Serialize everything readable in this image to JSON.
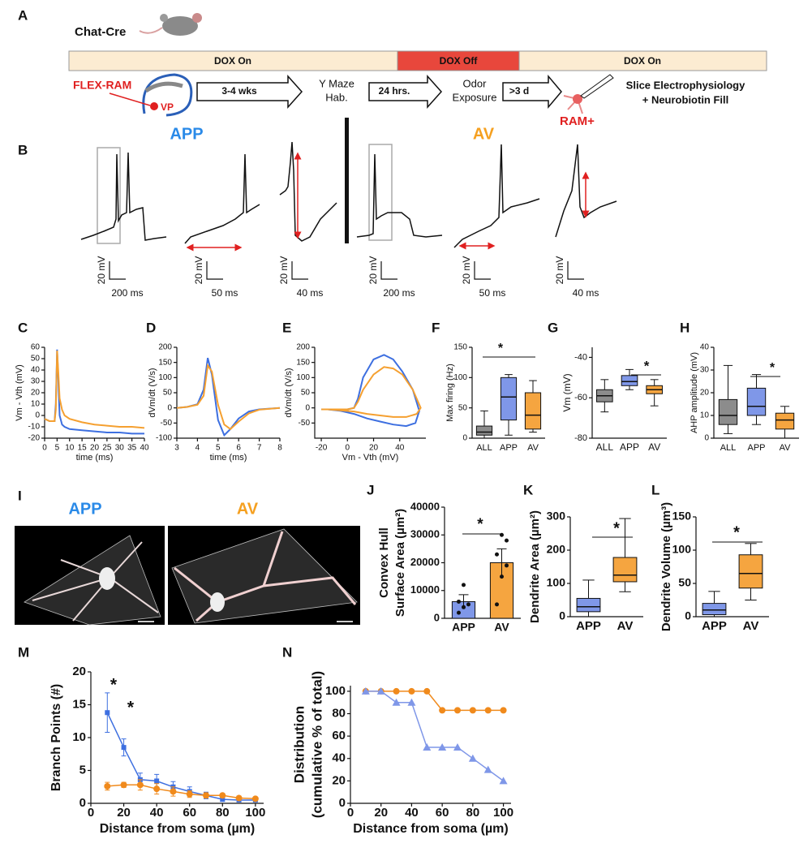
{
  "panel_labels": {
    "a": "A",
    "b": "B",
    "i": "I"
  },
  "schematic": {
    "mouse_line": "Chat-Cre",
    "dox_on_1": "DOX On",
    "dox_off": "DOX Off",
    "dox_on_2": "DOX On",
    "virus": "FLEX-RAM",
    "region": "VP",
    "step_1": "3-4 wks",
    "stage_1": [
      "Y Maze",
      "Hab."
    ],
    "step_2": "24 hrs.",
    "stage_2": [
      "Odor",
      "Exposure"
    ],
    "step_3": ">3 d",
    "stage_3": [
      "Slice Electrophysiology",
      "+ Neurobiotin Fill"
    ],
    "cell": "RAM+"
  },
  "traces": {
    "groups": [
      "APP",
      "AV"
    ],
    "scale_bars": [
      [
        "20 mV",
        "200 ms"
      ],
      [
        "20 mV",
        "50 ms"
      ],
      [
        "20 mV",
        "40 ms"
      ],
      [
        "20 mV",
        "200 ms"
      ],
      [
        "20 mV",
        "50 ms"
      ],
      [
        "20 mV",
        "40 ms"
      ]
    ]
  },
  "morphology": {
    "groups": [
      "APP",
      "AV"
    ]
  },
  "chart_data": [
    {
      "panel": "C",
      "type": "line",
      "xlabel": "time (ms)",
      "ylabel": "Vm - Vth (mV)",
      "x": [
        0,
        2,
        4,
        4.5,
        5,
        5.5,
        6,
        7,
        8,
        10,
        15,
        20,
        25,
        30,
        35,
        40
      ],
      "xlim": [
        0,
        40
      ],
      "xticks": [
        0,
        5,
        10,
        15,
        20,
        25,
        30,
        35,
        40
      ],
      "ylim": [
        -20,
        60
      ],
      "yticks": [
        -20,
        -10,
        0,
        10,
        20,
        30,
        40,
        50,
        60
      ],
      "series": [
        {
          "color": "#3d6fe0",
          "values": [
            -3,
            -5,
            -5,
            10,
            58,
            30,
            0,
            -8,
            -10,
            -12,
            -13,
            -14,
            -15,
            -15,
            -16,
            -16
          ]
        },
        {
          "color": "#f5a030",
          "values": [
            -3,
            -5,
            -5,
            5,
            57,
            38,
            15,
            5,
            0,
            -3,
            -6,
            -8,
            -9,
            -10,
            -10,
            -11
          ]
        }
      ]
    },
    {
      "panel": "D",
      "type": "line",
      "xlabel": "time (ms)",
      "ylabel": "dVm/dt (V/s)",
      "x": [
        3,
        3.5,
        4,
        4.3,
        4.5,
        4.7,
        5,
        5.3,
        5.6,
        6,
        6.5,
        7,
        8
      ],
      "xlim": [
        3,
        8
      ],
      "xticks": [
        3,
        4,
        5,
        6,
        7,
        8
      ],
      "ylim": [
        -100,
        200
      ],
      "yticks": [
        -100,
        -50,
        0,
        50,
        100,
        150,
        200
      ],
      "series": [
        {
          "color": "#3d6fe0",
          "values": [
            0,
            3,
            12,
            60,
            165,
            110,
            -40,
            -90,
            -70,
            -35,
            -12,
            -5,
            0
          ]
        },
        {
          "color": "#f5a030",
          "values": [
            0,
            3,
            10,
            40,
            140,
            120,
            10,
            -55,
            -70,
            -45,
            -18,
            -6,
            0
          ]
        }
      ]
    },
    {
      "panel": "E",
      "type": "line",
      "xlabel": "Vm - Vth (mV)",
      "ylabel": "dVm/dt (V/s)",
      "xlim": [
        -25,
        60
      ],
      "xticks": [
        -20,
        0,
        20,
        40
      ],
      "ylim": [
        -100,
        200
      ],
      "yticks": [
        -50,
        0,
        50,
        100,
        150,
        200
      ],
      "series": [
        {
          "color": "#3d6fe0",
          "x": [
            -20,
            -10,
            0,
            5,
            8,
            12,
            20,
            28,
            35,
            42,
            50,
            55,
            52,
            45,
            35,
            25,
            15,
            5,
            -5,
            -15,
            -20
          ],
          "values": [
            -5,
            -5,
            -5,
            0,
            30,
            100,
            160,
            175,
            160,
            120,
            60,
            -10,
            -50,
            -60,
            -55,
            -45,
            -35,
            -20,
            -10,
            -5,
            -5
          ]
        },
        {
          "color": "#f5a030",
          "x": [
            -20,
            -10,
            0,
            5,
            8,
            12,
            20,
            28,
            35,
            42,
            50,
            56,
            53,
            45,
            35,
            25,
            15,
            5,
            -5,
            -15,
            -20
          ],
          "values": [
            -5,
            -5,
            -5,
            0,
            20,
            60,
            110,
            135,
            130,
            110,
            60,
            0,
            -20,
            -30,
            -30,
            -25,
            -20,
            -12,
            -8,
            -5,
            -5
          ]
        }
      ]
    },
    {
      "panel": "F",
      "type": "box",
      "ylabel": "Max firing (Hz)",
      "categories": [
        "ALL",
        "APP",
        "AV"
      ],
      "colors": [
        "#8c8c8c",
        "#7f97e8",
        "#f5a540"
      ],
      "boxes": [
        {
          "min": 0,
          "q1": 5,
          "median": 10,
          "q3": 20,
          "max": 45
        },
        {
          "min": 5,
          "q1": 30,
          "median": 68,
          "q3": 100,
          "max": 105
        },
        {
          "min": 10,
          "q1": 15,
          "median": 38,
          "q3": 75,
          "max": 95
        }
      ],
      "ylim": [
        0,
        150
      ],
      "yticks": [
        0,
        50,
        100,
        150
      ],
      "annotations": [
        "*"
      ]
    },
    {
      "panel": "G",
      "type": "box",
      "ylabel": "Vm (mV)",
      "categories": [
        "ALL",
        "APP",
        "AV"
      ],
      "colors": [
        "#8c8c8c",
        "#7f97e8",
        "#f5a540"
      ],
      "boxes": [
        {
          "min": -67,
          "q1": -62,
          "median": -59,
          "q3": -56,
          "max": -51
        },
        {
          "min": -56,
          "q1": -54,
          "median": -52,
          "q3": -49,
          "max": -46
        },
        {
          "min": -64,
          "q1": -58,
          "median": -56,
          "q3": -54,
          "max": -51
        }
      ],
      "ylim": [
        -80,
        -35
      ],
      "yticks": [
        -80,
        -60,
        -40
      ],
      "annotations": [
        "*"
      ]
    },
    {
      "panel": "H",
      "type": "box",
      "ylabel": "AHP amplitude (mV)",
      "categories": [
        "ALL",
        "APP",
        "AV"
      ],
      "colors": [
        "#8c8c8c",
        "#7f97e8",
        "#f5a540"
      ],
      "boxes": [
        {
          "min": 2,
          "q1": 6,
          "median": 10,
          "q3": 17,
          "max": 32
        },
        {
          "min": 6,
          "q1": 10,
          "median": 14,
          "q3": 22,
          "max": 28
        },
        {
          "min": 0,
          "q1": 4,
          "median": 8,
          "q3": 11,
          "max": 14
        }
      ],
      "ylim": [
        0,
        40
      ],
      "yticks": [
        0,
        10,
        20,
        30,
        40
      ],
      "annotations": [
        "*"
      ]
    },
    {
      "panel": "J",
      "type": "bar",
      "ylabel": [
        "Convex Hull",
        "Surface Area (µm²)"
      ],
      "categories": [
        "APP",
        "AV"
      ],
      "colors": [
        "#7f97e8",
        "#f5a540"
      ],
      "values": [
        6000,
        20000
      ],
      "errors": [
        2500,
        5000
      ],
      "points": [
        [
          2000,
          4000,
          5000,
          6000,
          12000
        ],
        [
          5000,
          15000,
          19000,
          23000,
          30000,
          28000
        ]
      ],
      "ylim": [
        0,
        40000
      ],
      "yticks": [
        0,
        10000,
        20000,
        30000,
        40000
      ],
      "annotations": [
        "*"
      ]
    },
    {
      "panel": "K",
      "type": "box",
      "ylabel": "Dendrite Area (µm²)",
      "categories": [
        "APP",
        "AV"
      ],
      "colors": [
        "#7f97e8",
        "#f5a540"
      ],
      "boxes": [
        {
          "min": 0,
          "q1": 15,
          "median": 30,
          "q3": 55,
          "max": 110
        },
        {
          "min": 75,
          "q1": 105,
          "median": 125,
          "q3": 178,
          "max": 295
        }
      ],
      "ylim": [
        0,
        300
      ],
      "yticks": [
        0,
        100,
        200,
        300
      ],
      "annotations": [
        "*"
      ]
    },
    {
      "panel": "L",
      "type": "box",
      "ylabel": "Dendrite Volume (µm³)",
      "categories": [
        "APP",
        "AV"
      ],
      "colors": [
        "#7f97e8",
        "#f5a540"
      ],
      "boxes": [
        {
          "min": 0,
          "q1": 3,
          "median": 10,
          "q3": 20,
          "max": 38
        },
        {
          "min": 25,
          "q1": 43,
          "median": 65,
          "q3": 93,
          "max": 110
        }
      ],
      "ylim": [
        0,
        150
      ],
      "yticks": [
        0,
        50,
        100,
        150
      ],
      "annotations": [
        "*"
      ]
    },
    {
      "panel": "M",
      "type": "line",
      "xlabel": "Distance from soma (µm)",
      "ylabel": "Branch Points (#)",
      "x": [
        10,
        20,
        30,
        40,
        50,
        60,
        70,
        80,
        90,
        100
      ],
      "xlim": [
        0,
        105
      ],
      "xticks": [
        0,
        20,
        40,
        60,
        80,
        100
      ],
      "ylim": [
        0,
        20
      ],
      "yticks": [
        0,
        5,
        10,
        15,
        20
      ],
      "series": [
        {
          "color": "#3d6fe0",
          "marker": "square",
          "values": [
            13.8,
            8.5,
            3.6,
            3.4,
            2.5,
            1.8,
            1.2,
            0.6,
            0.5,
            0.5
          ],
          "errors": [
            3,
            1.3,
            1,
            1,
            0.8,
            0.7,
            0.5,
            0.3,
            0.3,
            0.2
          ]
        },
        {
          "color": "#f08a1c",
          "marker": "circle",
          "values": [
            2.6,
            2.8,
            2.8,
            2.2,
            1.8,
            1.4,
            1.2,
            1.2,
            0.8,
            0.7
          ],
          "errors": [
            0.6,
            0.4,
            0.8,
            0.8,
            0.7,
            0.5,
            0.4,
            0.3,
            0.3,
            0.2
          ]
        }
      ],
      "annotations": [
        "*",
        "*"
      ]
    },
    {
      "panel": "N",
      "type": "line",
      "xlabel": "Distance from soma (µm)",
      "ylabel": [
        "Distribution",
        "(cumulative % of total)"
      ],
      "x": [
        10,
        20,
        30,
        40,
        50,
        60,
        70,
        80,
        90,
        100
      ],
      "xlim": [
        0,
        105
      ],
      "xticks": [
        0,
        20,
        40,
        60,
        80,
        100
      ],
      "ylim": [
        0,
        105
      ],
      "yticks": [
        0,
        20,
        40,
        60,
        80,
        100
      ],
      "series": [
        {
          "color": "#f08a1c",
          "marker": "circle",
          "values": [
            100,
            100,
            100,
            100,
            100,
            83,
            83,
            83,
            83,
            83
          ]
        },
        {
          "color": "#7f97e8",
          "marker": "triangle",
          "values": [
            100,
            100,
            90,
            90,
            50,
            50,
            50,
            40,
            30,
            20
          ]
        }
      ]
    }
  ]
}
